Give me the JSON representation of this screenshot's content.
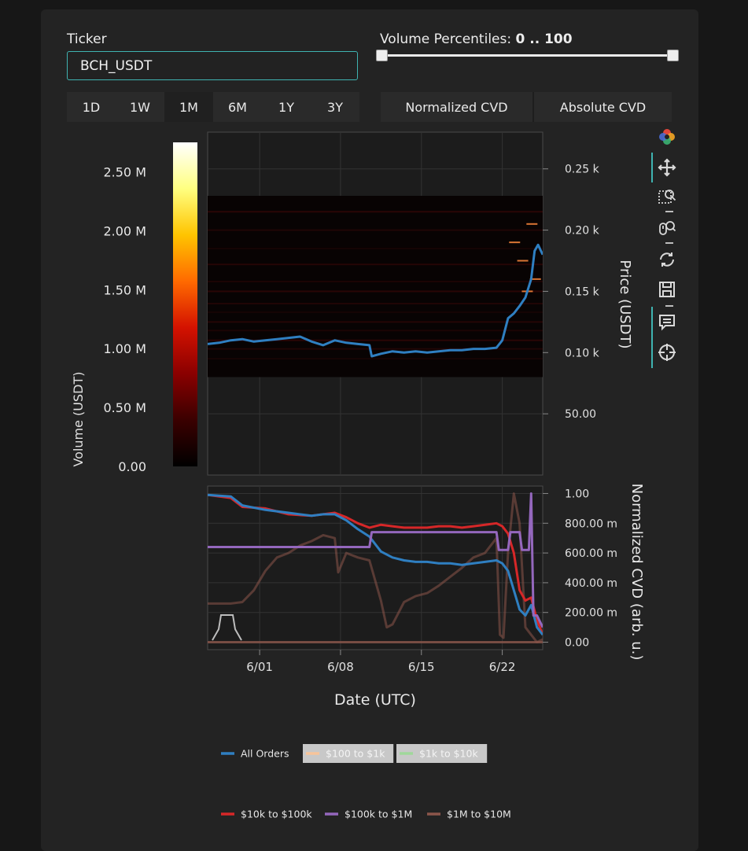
{
  "form": {
    "ticker_label": "Ticker",
    "ticker_value": "BCH_USDT",
    "percentile_label": "Volume Percentiles:",
    "percentile_value": "0 .. 100",
    "percentile_range": [
      0,
      100
    ],
    "timeframes": [
      "1D",
      "1W",
      "1M",
      "6M",
      "1Y",
      "3Y"
    ],
    "active_timeframe": "1M",
    "cvd_modes": [
      "Normalized CVD",
      "Absolute CVD"
    ],
    "active_cvd_mode": "Normalized CVD"
  },
  "toolbar": {
    "icons": [
      "bokeh-logo-icon",
      "pan-icon",
      "box-zoom-icon",
      "wheel-zoom-icon",
      "reset-icon",
      "save-icon",
      "hover-icon",
      "crosshair-icon"
    ],
    "active": [
      "pan-icon",
      "hover-icon",
      "crosshair-icon"
    ]
  },
  "colorbar": {
    "label": "Volume (USDT)",
    "ticks": [
      "0.00",
      "0.50 M",
      "1.00 M",
      "1.50 M",
      "2.00 M",
      "2.50 M"
    ],
    "tick_values": [
      0,
      0.5,
      1.0,
      1.5,
      2.0,
      2.5
    ],
    "range": [
      0,
      2.75
    ],
    "colormap": [
      "#000000",
      "#3a0000",
      "#8a0000",
      "#d41200",
      "#ff6a00",
      "#ffc400",
      "#ffff80",
      "#ffffff"
    ]
  },
  "colors": {
    "all_orders": "#2f7fc1",
    "s100_1k": "#f7c49a",
    "s1k_10k": "#9fd89a",
    "s10k_100k": "#d62728",
    "s100k_1m": "#9467bd",
    "s1m_10m": "#8c564b"
  },
  "chart_data": [
    {
      "type": "line",
      "panel": "price",
      "ylabel": "Price (USDT)",
      "y_ticks": [
        "50.00",
        "0.10 k",
        "0.15 k",
        "0.20 k",
        "0.25 k"
      ],
      "y_tick_values": [
        50,
        100,
        150,
        200,
        250
      ],
      "ylim": [
        0,
        280
      ],
      "xlim": [
        0,
        29
      ],
      "heatmap_price_range": [
        80,
        228
      ],
      "series": [
        {
          "name": "All Orders",
          "x": [
            0,
            1,
            2,
            3,
            4,
            5,
            6,
            7,
            8,
            9,
            10,
            11,
            12,
            13,
            14,
            14.2,
            15,
            16,
            17,
            18,
            19,
            20,
            21,
            22,
            23,
            24,
            25,
            25.5,
            26,
            26.5,
            27,
            27.5,
            28,
            28.3,
            28.6,
            29
          ],
          "y": [
            107,
            108,
            110,
            111,
            109,
            110,
            111,
            112,
            113,
            109,
            106,
            110,
            108,
            107,
            106,
            97,
            99,
            101,
            100,
            101,
            100,
            101,
            102,
            102,
            103,
            103,
            104,
            110,
            128,
            132,
            138,
            145,
            160,
            183,
            188,
            180
          ]
        }
      ]
    },
    {
      "type": "line",
      "panel": "cvd",
      "xlabel": "Date (UTC)",
      "ylabel": "Normalized CVD (arb. u.)",
      "x_ticks": [
        "6/01",
        "6/08",
        "6/15",
        "6/22"
      ],
      "x_tick_values": [
        4.5,
        11.5,
        18.5,
        25.5
      ],
      "y_ticks": [
        "0.00",
        "200.00 m",
        "400.00 m",
        "600.00 m",
        "800.00 m",
        "1.00"
      ],
      "y_tick_values": [
        0,
        0.2,
        0.4,
        0.6,
        0.8,
        1.0
      ],
      "ylim": [
        -0.05,
        1.05
      ],
      "xlim": [
        0,
        29
      ],
      "series": [
        {
          "name": "All Orders",
          "x": [
            0,
            2,
            3,
            5,
            7,
            9,
            10,
            11,
            12,
            13,
            14,
            15,
            16,
            17,
            18,
            19,
            20,
            21,
            22,
            23,
            24,
            25,
            25.5,
            26,
            26.5,
            27,
            27.5,
            28,
            28.5,
            29
          ],
          "y": [
            0.99,
            0.98,
            0.92,
            0.89,
            0.87,
            0.85,
            0.86,
            0.86,
            0.82,
            0.76,
            0.71,
            0.61,
            0.57,
            0.55,
            0.54,
            0.54,
            0.53,
            0.53,
            0.52,
            0.53,
            0.54,
            0.55,
            0.53,
            0.48,
            0.35,
            0.22,
            0.18,
            0.25,
            0.1,
            0.05
          ]
        },
        {
          "name": "$10k to $100k",
          "x": [
            0,
            2,
            3,
            5,
            7,
            9,
            10,
            11,
            12,
            13,
            14,
            15,
            16,
            17,
            18,
            19,
            20,
            21,
            22,
            23,
            24,
            25,
            25.5,
            26,
            26.5,
            27,
            27.5,
            28,
            28.5,
            29
          ],
          "y": [
            0.99,
            0.97,
            0.91,
            0.9,
            0.86,
            0.85,
            0.86,
            0.87,
            0.84,
            0.8,
            0.77,
            0.79,
            0.78,
            0.77,
            0.77,
            0.77,
            0.78,
            0.78,
            0.77,
            0.78,
            0.79,
            0.8,
            0.78,
            0.73,
            0.6,
            0.35,
            0.28,
            0.3,
            0.15,
            0.05
          ]
        },
        {
          "name": "$100k to $1M",
          "x": [
            0,
            14,
            14.2,
            25,
            25.2,
            26,
            26.2,
            27,
            27.2,
            27.8,
            28,
            28.2,
            28.5,
            29
          ],
          "y": [
            0.64,
            0.64,
            0.74,
            0.74,
            0.62,
            0.62,
            0.74,
            0.74,
            0.62,
            0.62,
            1.0,
            0.18,
            0.18,
            0.1
          ]
        },
        {
          "name": "$1M to $10M",
          "x": [
            0,
            1,
            2,
            3,
            4,
            5,
            6,
            7,
            8,
            9,
            10,
            11,
            11.3,
            12,
            13,
            14,
            15,
            15.5,
            16,
            17,
            18,
            19,
            20,
            21,
            22,
            23,
            24,
            25,
            25.3,
            25.6,
            26,
            26.5,
            27,
            27.5,
            28,
            28.5,
            29
          ],
          "y": [
            0.26,
            0.26,
            0.26,
            0.27,
            0.35,
            0.48,
            0.57,
            0.6,
            0.65,
            0.68,
            0.72,
            0.7,
            0.47,
            0.6,
            0.57,
            0.55,
            0.28,
            0.1,
            0.12,
            0.27,
            0.31,
            0.33,
            0.38,
            0.44,
            0.5,
            0.57,
            0.6,
            0.7,
            0.05,
            0.03,
            0.6,
            1.0,
            0.8,
            0.1,
            0.05,
            0.0,
            0.02
          ]
        }
      ]
    }
  ],
  "legend": [
    {
      "label": "All Orders",
      "color": "#2f7fc1",
      "muted": false
    },
    {
      "label": "$100 to $1k",
      "color": "#f7c49a",
      "muted": true
    },
    {
      "label": "$1k to $10k",
      "color": "#9fd89a",
      "muted": true
    },
    {
      "label": "$10k to $100k",
      "color": "#d62728",
      "muted": false
    },
    {
      "label": "$100k to $1M",
      "color": "#9467bd",
      "muted": false
    },
    {
      "label": "$1M to $10M",
      "color": "#8c564b",
      "muted": false
    }
  ]
}
